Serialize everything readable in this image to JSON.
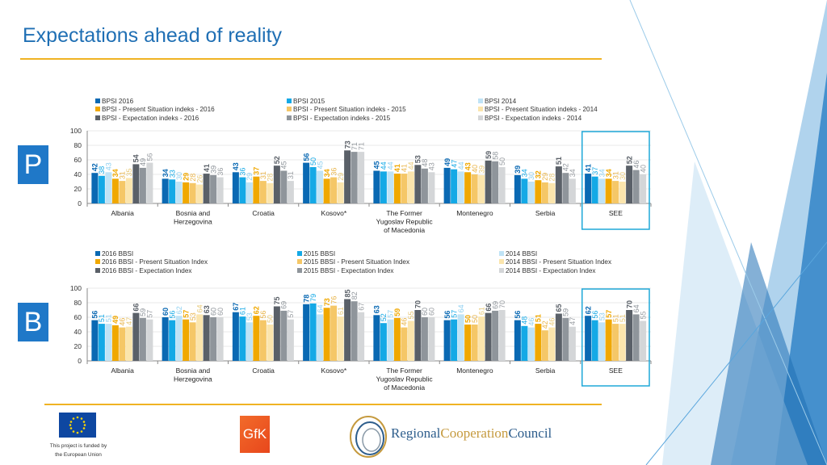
{
  "title": "Expectations ahead of reality",
  "panels": {
    "top_letter": "P",
    "bottom_letter": "B"
  },
  "footer": {
    "eu_text_line1": "This project is funded by",
    "eu_text_line2": "the European Union",
    "gfk_logo": "GfK",
    "rcc_part1": "Regional",
    "rcc_part2": "Cooperation",
    "rcc_part3": "Council"
  },
  "colors": {
    "s2016": "#0a69b3",
    "s2015": "#14a9e6",
    "s2014": "#bfe3f6",
    "ps2016": "#f0a800",
    "ps2015": "#f5c767",
    "ps2014": "#fbe5ad",
    "ex2016": "#5a6068",
    "ex2015": "#8f959b",
    "ex2014": "#d4d6d8",
    "title": "#1f6fb4",
    "rule": "#f0b323",
    "highlight": "#1fa8d8"
  },
  "chart_data": [
    {
      "type": "bar",
      "categories": [
        "Albania",
        "Bosnia and\nHerzegovina",
        "Croatia",
        "Kosovo*",
        "The Former\nYugoslav Republic\nof Macedonia",
        "Montenegro",
        "Serbia",
        "SEE"
      ],
      "ylim": [
        0,
        100
      ],
      "yticks": [
        0,
        20,
        40,
        60,
        80,
        100
      ],
      "grid": true,
      "legend_position": "top",
      "highlighted_category": "SEE",
      "series": [
        {
          "name": "BPSI 2016",
          "values": [
            42,
            34,
            43,
            56,
            45,
            49,
            39,
            41
          ]
        },
        {
          "name": "BPSI 2015",
          "values": [
            38,
            33,
            36,
            50,
            44,
            47,
            34,
            37
          ]
        },
        {
          "name": "BPSI 2014",
          "values": [
            43,
            30,
            29,
            45,
            44,
            44,
            30,
            34
          ]
        },
        {
          "name": "BPSI - Present Situation indeks - 2016",
          "values": [
            34,
            29,
            37,
            34,
            41,
            43,
            32,
            34
          ]
        },
        {
          "name": "BPSI - Present Situation indeks - 2015",
          "values": [
            31,
            28,
            31,
            36,
            41,
            40,
            29,
            31
          ]
        },
        {
          "name": "BPSI - Present Situation indeks - 2014",
          "values": [
            35,
            26,
            28,
            29,
            44,
            39,
            28,
            30
          ]
        },
        {
          "name": "BPSI - Expectation indeks - 2016",
          "values": [
            54,
            41,
            52,
            73,
            53,
            59,
            51,
            52
          ]
        },
        {
          "name": "BPSI - Expectation indeks - 2015",
          "values": [
            49,
            39,
            45,
            71,
            48,
            58,
            42,
            46
          ]
        },
        {
          "name": "BPSI - Expectation indeks - 2014",
          "values": [
            56,
            36,
            31,
            71,
            43,
            50,
            34,
            40
          ]
        }
      ]
    },
    {
      "type": "bar",
      "categories": [
        "Albania",
        "Bosnia and\nHerzegovina",
        "Croatia",
        "Kosovo*",
        "The Former\nYugoslav Republic\nof Macedonia",
        "Montenegro",
        "Serbia",
        "SEE"
      ],
      "ylim": [
        0,
        100
      ],
      "yticks": [
        0,
        20,
        40,
        60,
        80,
        100
      ],
      "grid": true,
      "legend_position": "top",
      "highlighted_category": "SEE",
      "series": [
        {
          "name": "2016 BBSI",
          "values": [
            56,
            60,
            67,
            78,
            63,
            56,
            56,
            62
          ]
        },
        {
          "name": "2015 BBSI",
          "values": [
            51,
            56,
            61,
            79,
            52,
            57,
            48,
            56
          ]
        },
        {
          "name": "2014 BBSI",
          "values": [
            51,
            62,
            53,
            64,
            57,
            64,
            46,
            53
          ]
        },
        {
          "name": "2016 BBSI - Present Situation Index",
          "values": [
            49,
            57,
            62,
            73,
            59,
            50,
            51,
            57
          ]
        },
        {
          "name": "2015 BBSI - Present Situation Index",
          "values": [
            46,
            53,
            56,
            76,
            46,
            50,
            42,
            51
          ]
        },
        {
          "name": "2014 BBSI - Present Situation Index",
          "values": [
            47,
            64,
            50,
            61,
            55,
            61,
            46,
            51
          ]
        },
        {
          "name": "2016 BBSI - Expectation Index",
          "values": [
            66,
            63,
            75,
            85,
            70,
            66,
            65,
            70
          ]
        },
        {
          "name": "2015 BBSI - Expectation Index",
          "values": [
            59,
            60,
            69,
            82,
            60,
            69,
            59,
            64
          ]
        },
        {
          "name": "2014 BBSI - Expectation Index",
          "values": [
            57,
            60,
            57,
            67,
            60,
            70,
            47,
            55
          ]
        }
      ]
    }
  ]
}
